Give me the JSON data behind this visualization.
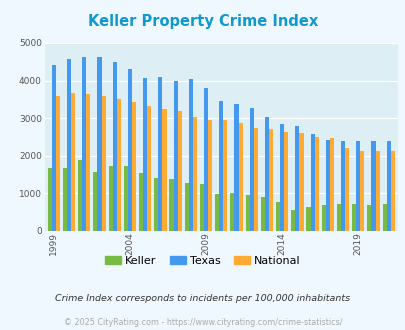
{
  "title": "Keller Property Crime Index",
  "years": [
    1999,
    2000,
    2001,
    2002,
    2003,
    2004,
    2005,
    2006,
    2007,
    2008,
    2009,
    2010,
    2011,
    2012,
    2013,
    2014,
    2015,
    2016,
    2017,
    2018,
    2019,
    2020,
    2021
  ],
  "keller": [
    1680,
    1680,
    1900,
    1580,
    1720,
    1730,
    1540,
    1400,
    1370,
    1280,
    1260,
    980,
    1020,
    970,
    900,
    760,
    560,
    640,
    700,
    720,
    720,
    700,
    720
  ],
  "texas": [
    4420,
    4580,
    4620,
    4620,
    4500,
    4300,
    4080,
    4100,
    4000,
    4050,
    3800,
    3460,
    3380,
    3270,
    3040,
    2840,
    2800,
    2580,
    2420,
    2400,
    2400,
    2400,
    2400
  ],
  "national": [
    3600,
    3680,
    3650,
    3600,
    3500,
    3440,
    3330,
    3230,
    3200,
    3040,
    2960,
    2950,
    2880,
    2740,
    2720,
    2620,
    2610,
    2490,
    2460,
    2200,
    2130,
    2130,
    2130
  ],
  "keller_color": "#77bb44",
  "texas_color": "#4499ee",
  "national_color": "#ffaa33",
  "fig_bg": "#f0f8ff",
  "plot_bg": "#ddeef5",
  "title_color": "#1199cc",
  "ylim": [
    0,
    5000
  ],
  "yticks": [
    0,
    1000,
    2000,
    3000,
    4000,
    5000
  ],
  "xtick_labels": [
    "1999",
    "2004",
    "2009",
    "2014",
    "2019"
  ],
  "xtick_positions": [
    0,
    5,
    10,
    15,
    20
  ],
  "note_text": "Crime Index corresponds to incidents per 100,000 inhabitants",
  "footer_text": "© 2025 CityRating.com - https://www.cityrating.com/crime-statistics/",
  "legend_labels": [
    "Keller",
    "Texas",
    "National"
  ],
  "bar_width": 0.27
}
